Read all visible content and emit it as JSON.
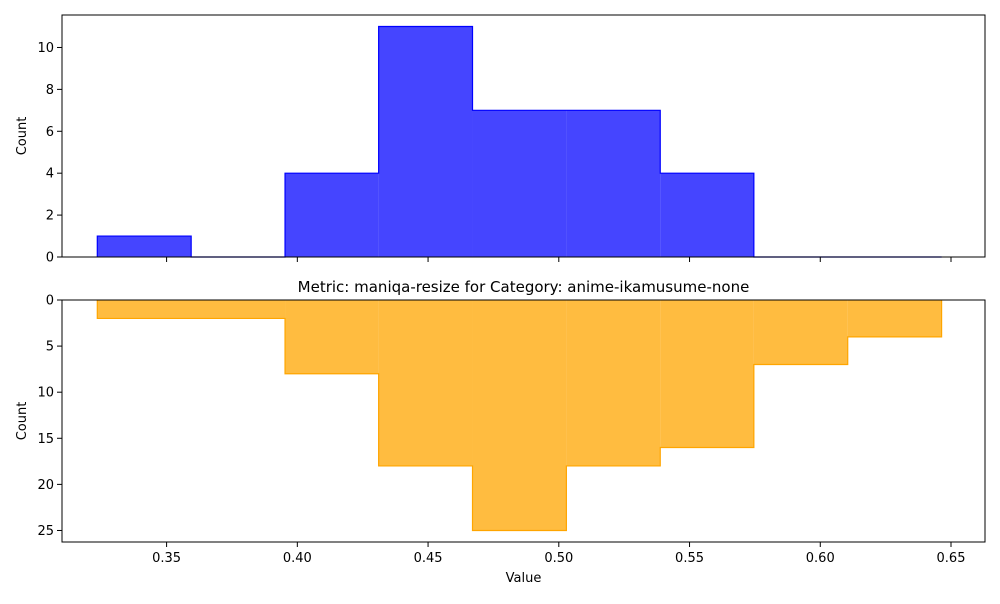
{
  "chart_data": [
    {
      "type": "histogram",
      "title": "",
      "xlabel": "",
      "ylabel": "Count",
      "color": "#0000ff",
      "bin_edges": [
        0.3235,
        0.3594,
        0.3953,
        0.4311,
        0.467,
        0.5029,
        0.5388,
        0.5746,
        0.6105,
        0.6464
      ],
      "values": [
        1,
        0,
        4,
        11,
        7,
        7,
        4,
        0,
        0
      ],
      "xlim": [
        0.31,
        0.663
      ],
      "ylim": [
        0,
        11.55
      ],
      "yticks": [
        0,
        2,
        4,
        6,
        8,
        10
      ],
      "xticks": [
        0.35,
        0.4,
        0.45,
        0.5,
        0.55,
        0.6,
        0.65
      ],
      "inverted": false
    },
    {
      "type": "histogram",
      "title": "Metric: maniqa-resize for Category: anime-ikamusume-none",
      "xlabel": "Value",
      "ylabel": "Count",
      "color": "#ffa500",
      "bin_edges": [
        0.3235,
        0.3953,
        0.4311,
        0.467,
        0.5029,
        0.5388,
        0.5746,
        0.6105,
        0.6464
      ],
      "values": [
        2,
        8,
        18,
        25,
        18,
        16,
        7,
        4
      ],
      "xlim": [
        0.31,
        0.663
      ],
      "ylim": [
        0,
        26.25
      ],
      "yticks": [
        0,
        5,
        10,
        15,
        20,
        25
      ],
      "xticks": [
        0.35,
        0.4,
        0.45,
        0.5,
        0.55,
        0.6,
        0.65
      ],
      "xticklabels": [
        "0.35",
        "0.40",
        "0.45",
        "0.50",
        "0.55",
        "0.60",
        "0.65"
      ],
      "inverted": true
    }
  ]
}
